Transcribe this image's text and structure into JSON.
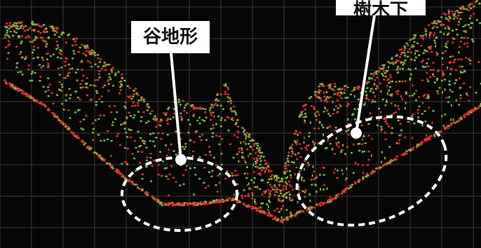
{
  "annotations": {
    "valley_label": "谷地形",
    "under_trees_label": "樹木下"
  },
  "colors": {
    "background": "#060606",
    "grid": "#3a3a3a",
    "ground_points": "#e2312c",
    "vegetation_points": "#7ab648",
    "callout": "#ffffff"
  }
}
